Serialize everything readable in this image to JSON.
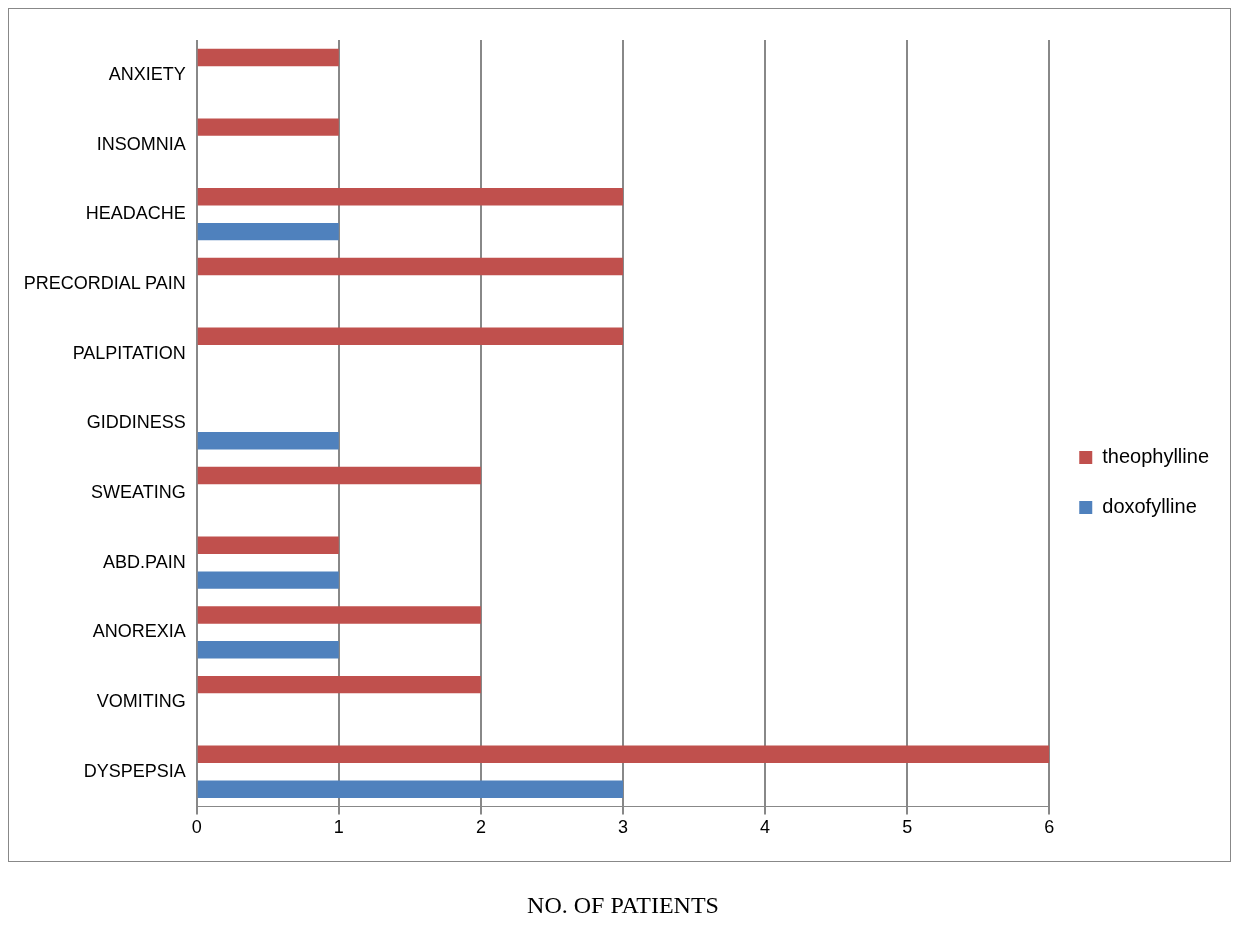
{
  "chart_data": {
    "type": "bar",
    "orientation": "horizontal",
    "xlabel": "NO. OF PATIENTS",
    "categories": [
      "ANXIETY",
      "INSOMNIA",
      "HEADACHE",
      "PRECORDIAL PAIN",
      "PALPITATION",
      "GIDDINESS",
      "SWEATING",
      "ABD.PAIN",
      "ANOREXIA",
      "VOMITING",
      "DYSPEPSIA"
    ],
    "series": [
      {
        "name": "theophylline",
        "color": "#c0504d",
        "values": [
          1,
          1,
          3,
          3,
          3,
          0,
          2,
          1,
          2,
          2,
          6
        ]
      },
      {
        "name": "doxofylline",
        "color": "#4f81bd",
        "values": [
          0,
          0,
          1,
          0,
          0,
          1,
          0,
          1,
          1,
          0,
          3
        ]
      }
    ],
    "xlim": [
      0,
      6
    ],
    "xticks": [
      0,
      1,
      2,
      3,
      4,
      5,
      6
    ],
    "grid": "x",
    "legend": "right"
  }
}
